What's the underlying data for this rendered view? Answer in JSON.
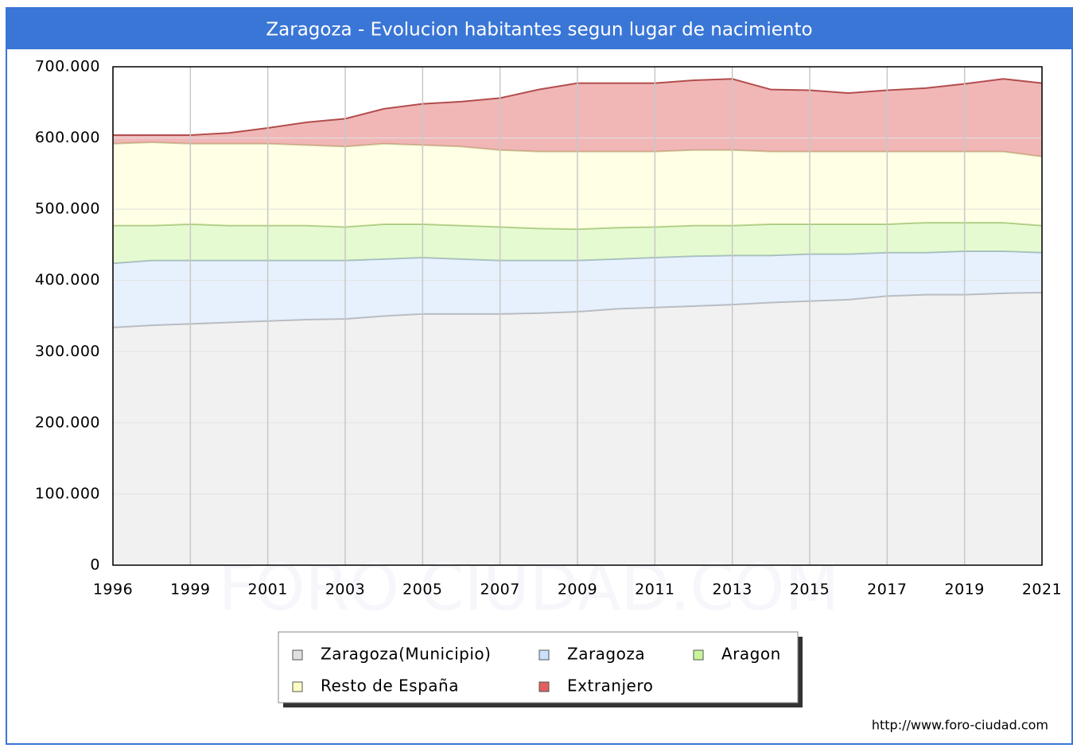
{
  "chart_data": {
    "type": "stacked_area",
    "title": "Zaragoza - Evolucion habitantes segun lugar de nacimiento",
    "categories": [
      "1996",
      null,
      "1999",
      null,
      "2001",
      null,
      "2003",
      null,
      "2005",
      null,
      "2007",
      null,
      "2009",
      null,
      "2011",
      null,
      "2013",
      null,
      "2015",
      null,
      "2017",
      null,
      "2019",
      null,
      "2021"
    ],
    "series": [
      {
        "name": "Zaragoza(Municipio)",
        "color": "#e0e0e0",
        "values": [
          334000,
          337000,
          339000,
          341000,
          343000,
          345000,
          346000,
          350000,
          353000,
          353000,
          353000,
          354000,
          356000,
          360000,
          362000,
          364000,
          366000,
          369000,
          371000,
          373000,
          378000,
          380000,
          380000,
          382000,
          383000
        ]
      },
      {
        "name": "Zaragoza",
        "color": "#c9e1fa",
        "values": [
          90000,
          91000,
          89000,
          87000,
          85000,
          83000,
          82000,
          80000,
          79000,
          77000,
          75000,
          74000,
          72000,
          70000,
          70000,
          70000,
          69000,
          66000,
          66000,
          64000,
          61000,
          59000,
          61000,
          59000,
          56000
        ]
      },
      {
        "name": "Aragon",
        "color": "#c8f59a",
        "values": [
          53000,
          49000,
          51000,
          49000,
          49000,
          49000,
          47000,
          49000,
          47000,
          47000,
          47000,
          45000,
          44000,
          44000,
          43000,
          43000,
          42000,
          44000,
          42000,
          42000,
          40000,
          42000,
          40000,
          40000,
          38000
        ]
      },
      {
        "name": "Resto de España",
        "color": "#fdffc4",
        "values": [
          115000,
          117000,
          113000,
          115000,
          115000,
          113000,
          113000,
          113000,
          111000,
          111000,
          108000,
          108000,
          109000,
          107000,
          106000,
          106000,
          106000,
          102000,
          102000,
          102000,
          102000,
          100000,
          100000,
          100000,
          97000
        ]
      },
      {
        "name": "Extranjero",
        "color": "#e06060",
        "values": [
          12000,
          10000,
          12000,
          15000,
          22000,
          32000,
          39000,
          49000,
          58000,
          63000,
          73000,
          87000,
          96000,
          96000,
          96000,
          98000,
          100000,
          87000,
          86000,
          82000,
          86000,
          89000,
          95000,
          102000,
          103000
        ]
      }
    ],
    "ylim": [
      0,
      700000
    ],
    "yticks": [
      0,
      {
        "value": 100000,
        "label": "100.000"
      },
      {
        "value": 200000,
        "label": "200.000"
      },
      {
        "value": 300000,
        "label": "300.000"
      },
      {
        "value": 400000,
        "label": "400.000"
      },
      {
        "value": 500000,
        "label": "500.000"
      },
      {
        "value": 600000,
        "label": "600.000"
      },
      {
        "value": 700000,
        "label": "700.000"
      }
    ],
    "grid": true,
    "watermark": "FORO CIUDAD.COM",
    "source": "http://www.foro-ciudad.com"
  }
}
